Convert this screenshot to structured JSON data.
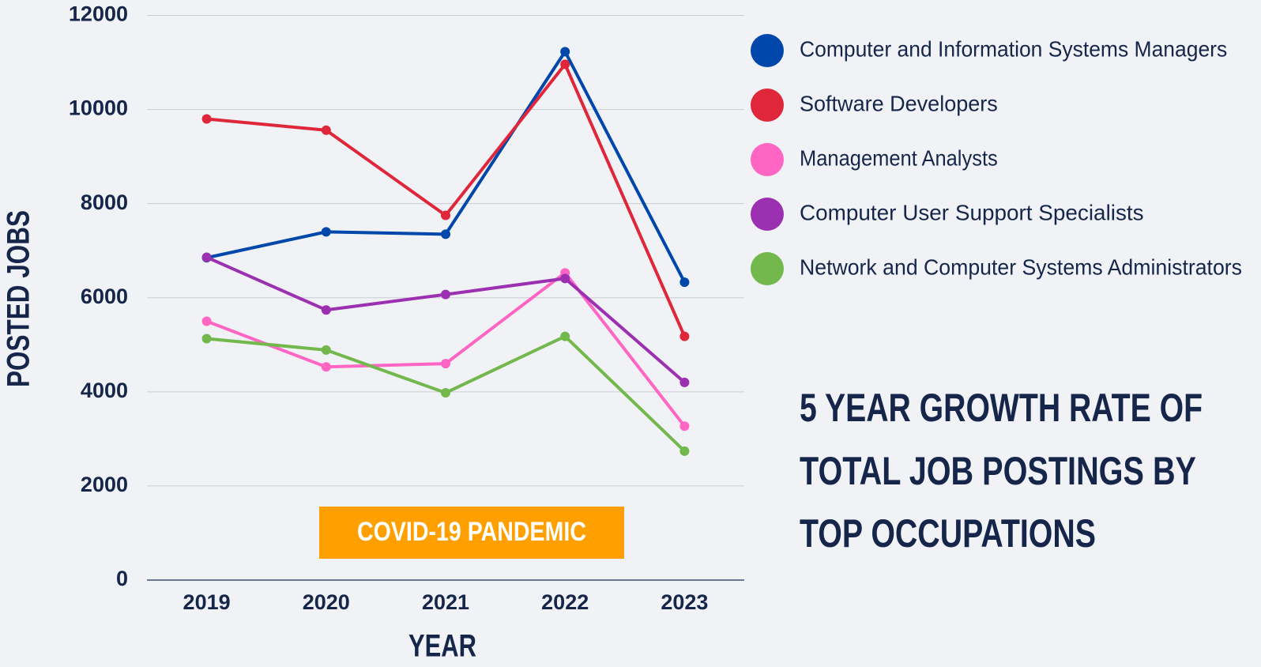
{
  "chart_data": {
    "type": "line",
    "title": [
      "5 YEAR GROWTH RATE OF",
      "TOTAL JOB POSTINGS BY",
      "TOP OCCUPATIONS"
    ],
    "x_label": "YEAR",
    "y_label": "POSTED JOBS",
    "annotation": "COVID-19 PANDEMIC",
    "categories": [
      "2019",
      "2020",
      "2021",
      "2022",
      "2023"
    ],
    "series": [
      {
        "name": "Computer and Information Systems Managers",
        "color": "#0047ab",
        "values": [
          6850,
          7400,
          7350,
          11230,
          6330
        ]
      },
      {
        "name": "Software Developers",
        "color": "#e0263a",
        "values": [
          9800,
          9560,
          7750,
          10960,
          5180
        ]
      },
      {
        "name": "Management Analysts",
        "color": "#ff66c4",
        "values": [
          5500,
          4530,
          4600,
          6530,
          3270
        ]
      },
      {
        "name": "Computer User Support Specialists",
        "color": "#9b30b0",
        "values": [
          6860,
          5740,
          6070,
          6410,
          4200
        ]
      },
      {
        "name": "Network and Computer Systems Administrators",
        "color": "#72b84c",
        "values": [
          5130,
          4890,
          3980,
          5180,
          2740
        ]
      }
    ],
    "ylim": [
      0,
      12000
    ],
    "yticks": [
      0,
      2000,
      4000,
      6000,
      8000,
      10000,
      12000
    ],
    "grid": true
  }
}
